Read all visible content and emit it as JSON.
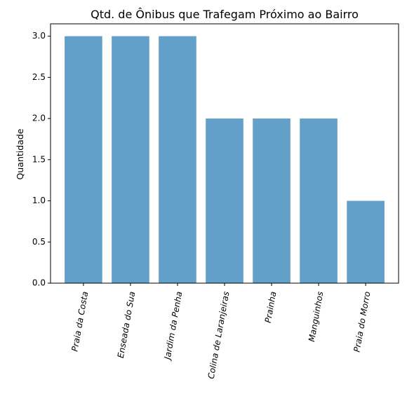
{
  "chart_data": {
    "type": "bar",
    "title": "Qtd. de Ônibus que Trafegam Próximo ao Bairro",
    "xlabel": "",
    "ylabel": "Quantidade",
    "categories": [
      "Praia da Costa",
      "Enseada do Sua",
      "Jardim da Penha",
      "Colina de Laranjeiras",
      "Prainha",
      "Manguinhos",
      "Praia do Morro"
    ],
    "values": [
      3,
      3,
      3,
      2,
      2,
      2,
      1
    ],
    "yticks": [
      "0.0",
      "0.5",
      "1.0",
      "1.5",
      "2.0",
      "2.5",
      "3.0"
    ],
    "ylim": [
      0,
      3.15
    ],
    "bar_color": "#62a0ca",
    "grid": false,
    "legend": "none"
  }
}
